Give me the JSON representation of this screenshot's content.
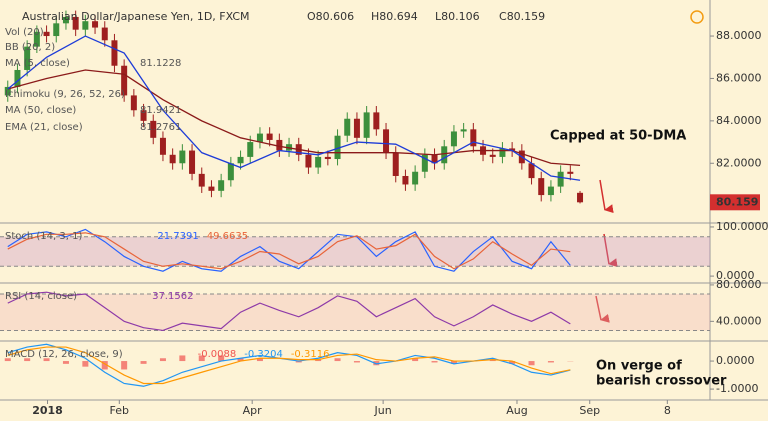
{
  "chart_data": [
    {
      "type": "candlestick",
      "title": "Australian Dollar/Japanese Yen, 1D, FXCM",
      "ohlc_prefixes": [
        "O",
        "H",
        "L",
        "C"
      ],
      "x": [
        0,
        1,
        2,
        3,
        4,
        5,
        6,
        7,
        8,
        9,
        10,
        11,
        12,
        13,
        14,
        15,
        16,
        17,
        18,
        19,
        20,
        21,
        22,
        23,
        24,
        25,
        26,
        27,
        28,
        29,
        30,
        31,
        32,
        33,
        34,
        35,
        36,
        37,
        38,
        39,
        40,
        41,
        42,
        43,
        44,
        45,
        46,
        47,
        48,
        49,
        50,
        51,
        52,
        53,
        54,
        55,
        56,
        57,
        58,
        59
      ],
      "open": [
        85.2,
        85.6,
        86.4,
        87.5,
        88.2,
        88.0,
        88.6,
        88.9,
        88.3,
        88.7,
        88.4,
        87.8,
        86.6,
        85.2,
        84.5,
        84.0,
        83.2,
        82.4,
        82.0,
        82.6,
        81.5,
        80.9,
        80.7,
        81.2,
        82.0,
        82.3,
        83.0,
        83.4,
        83.1,
        82.6,
        82.9,
        82.4,
        81.8,
        82.3,
        82.2,
        83.3,
        84.1,
        83.2,
        84.4,
        83.6,
        82.5,
        81.4,
        81.0,
        81.6,
        82.4,
        82.0,
        82.8,
        83.5,
        83.6,
        82.8,
        82.4,
        82.3,
        82.7,
        82.6,
        82.0,
        81.3,
        80.5,
        80.9,
        81.6,
        80.606
      ],
      "high": [
        85.9,
        86.7,
        87.8,
        88.5,
        88.5,
        88.9,
        89.2,
        89.2,
        89.0,
        89.0,
        88.7,
        88.1,
        86.9,
        85.5,
        84.8,
        84.3,
        83.5,
        82.7,
        82.9,
        82.9,
        81.8,
        81.2,
        81.5,
        82.3,
        82.6,
        83.3,
        83.7,
        83.7,
        83.4,
        83.2,
        83.2,
        82.7,
        82.6,
        82.6,
        83.6,
        84.4,
        84.4,
        84.7,
        84.7,
        83.9,
        82.8,
        81.7,
        81.9,
        82.7,
        82.7,
        83.1,
        83.8,
        83.9,
        83.9,
        83.1,
        82.7,
        83.0,
        83.0,
        82.9,
        82.3,
        81.6,
        81.2,
        81.9,
        81.9,
        80.694
      ],
      "low": [
        84.9,
        85.3,
        86.1,
        87.2,
        87.7,
        87.7,
        88.3,
        88.0,
        88.0,
        88.1,
        87.5,
        86.3,
        84.9,
        84.2,
        83.7,
        82.9,
        82.1,
        81.7,
        81.7,
        81.2,
        80.6,
        80.4,
        80.4,
        80.9,
        81.7,
        82.0,
        82.7,
        82.8,
        82.3,
        82.3,
        82.1,
        81.5,
        81.5,
        81.9,
        81.9,
        83.0,
        82.9,
        82.9,
        83.3,
        82.2,
        81.1,
        80.7,
        80.7,
        81.3,
        81.7,
        81.7,
        82.5,
        83.2,
        82.5,
        82.1,
        82.0,
        82.0,
        82.3,
        81.7,
        81.0,
        80.2,
        80.2,
        80.6,
        81.2,
        80.106
      ],
      "close": [
        85.6,
        86.4,
        87.5,
        88.2,
        88.0,
        88.6,
        88.9,
        88.3,
        88.7,
        88.4,
        87.8,
        86.6,
        85.2,
        84.5,
        84.0,
        83.2,
        82.4,
        82.0,
        82.6,
        81.5,
        80.9,
        80.7,
        81.2,
        82.0,
        82.3,
        83.0,
        83.4,
        83.1,
        82.6,
        82.9,
        82.4,
        81.8,
        82.3,
        82.2,
        83.3,
        84.1,
        83.2,
        84.4,
        83.6,
        82.5,
        81.4,
        81.0,
        81.6,
        82.4,
        82.0,
        82.8,
        83.5,
        83.6,
        82.8,
        82.4,
        82.3,
        82.7,
        82.6,
        82.0,
        81.3,
        80.5,
        80.9,
        81.6,
        81.5,
        80.159
      ],
      "up_color": "#3c8f3c",
      "down_color": "#9e1f1f",
      "price_label_color": "#d32f2f",
      "overlays": [
        {
          "color": "#8b1a1a",
          "x": [
            0,
            4,
            8,
            12,
            16,
            20,
            24,
            28,
            32,
            36,
            40,
            44,
            48,
            52,
            56,
            59
          ],
          "values": [
            85.5,
            86.0,
            86.4,
            86.2,
            85.0,
            84.0,
            83.2,
            82.8,
            82.5,
            82.5,
            82.5,
            82.4,
            82.6,
            82.6,
            82.0,
            81.9
          ]
        },
        {
          "color": "#1e3cd8",
          "x": [
            0,
            4,
            8,
            12,
            16,
            20,
            24,
            28,
            32,
            36,
            40,
            44,
            48,
            52,
            56,
            59
          ],
          "values": [
            85.5,
            87.0,
            88.0,
            87.2,
            84.5,
            82.5,
            81.8,
            82.6,
            82.4,
            83.0,
            82.9,
            82.0,
            83.0,
            82.6,
            81.4,
            81.2
          ]
        }
      ],
      "indicators": [
        {
          "name": "Vol (20)"
        },
        {
          "name": "BB (20, 2)"
        },
        {
          "name": "MA (5, close)",
          "value_text": "81.1228"
        },
        {
          "name": "Ichimoku (9, 26, 52, 26)"
        },
        {
          "name": "MA (50, close)",
          "value_text": "81.9421"
        },
        {
          "name": "EMA (21, close)",
          "value_text": "81.2761"
        }
      ],
      "annotation": "Capped at 50-DMA",
      "xlim": [
        -0.8,
        72.4
      ],
      "xticks": [
        {
          "value": 4.1,
          "label": "2018"
        },
        {
          "value": 11.5,
          "label": "Feb"
        },
        {
          "value": 25.2,
          "label": "Apr"
        },
        {
          "value": 38.7,
          "label": "Jun"
        },
        {
          "value": 52.5,
          "label": "Aug"
        },
        {
          "value": 60,
          "label": "Sep"
        },
        {
          "value": 68,
          "label": "8"
        }
      ],
      "ylim": [
        79.23,
        89.7
      ],
      "yticks": [
        {
          "value": 88,
          "label": "88.0000"
        },
        {
          "value": 86,
          "label": "86.0000"
        },
        {
          "value": 84,
          "label": "84.0000"
        },
        {
          "value": 82,
          "label": "82.0000"
        }
      ]
    },
    {
      "type": "line",
      "legend": "Stoch (14, 3, 1)",
      "x": [
        0,
        2,
        4,
        6,
        8,
        10,
        12,
        14,
        16,
        18,
        20,
        22,
        24,
        26,
        28,
        30,
        32,
        34,
        36,
        38,
        40,
        42,
        44,
        46,
        48,
        50,
        52,
        54,
        56,
        58
      ],
      "series": [
        {
          "color": "#2962ff",
          "values": [
            60,
            85,
            90,
            80,
            95,
            70,
            40,
            20,
            10,
            30,
            15,
            10,
            40,
            60,
            30,
            15,
            50,
            85,
            80,
            40,
            70,
            90,
            20,
            10,
            50,
            80,
            30,
            15,
            70,
            21.7391
          ]
        },
        {
          "color": "#e8643a",
          "values": [
            55,
            75,
            85,
            85,
            88,
            80,
            55,
            30,
            20,
            25,
            20,
            15,
            30,
            50,
            45,
            25,
            40,
            70,
            82,
            55,
            62,
            85,
            40,
            15,
            35,
            70,
            45,
            22,
            55,
            49.6635
          ]
        }
      ],
      "band": [
        20,
        80
      ],
      "band_color": "#c993c9",
      "xlim": [
        -0.8,
        72.4
      ],
      "ylim": [
        -12,
        106
      ],
      "yticks": [
        {
          "value": 100,
          "label": "100.0000"
        },
        {
          "value": 0,
          "label": "0.0000"
        }
      ]
    },
    {
      "type": "line",
      "legend": "RSI (14, close)",
      "x": [
        0,
        2,
        4,
        6,
        8,
        10,
        12,
        14,
        16,
        18,
        20,
        22,
        24,
        26,
        28,
        30,
        32,
        34,
        36,
        38,
        40,
        42,
        44,
        46,
        48,
        50,
        52,
        54,
        56,
        58
      ],
      "series": [
        {
          "color": "#8e3aa8",
          "values": [
            60,
            70,
            72,
            68,
            70,
            55,
            40,
            33,
            30,
            38,
            35,
            32,
            50,
            60,
            52,
            45,
            55,
            68,
            62,
            45,
            55,
            65,
            45,
            35,
            45,
            58,
            48,
            40,
            50,
            37.1562
          ]
        }
      ],
      "band": [
        30,
        70
      ],
      "band_color": "#f2b8b8",
      "xlim": [
        -0.8,
        72.4
      ],
      "ylim": [
        19.5,
        81
      ],
      "yticks": [
        {
          "value": 80,
          "label": "80.0000"
        },
        {
          "value": 40,
          "label": "40.0000"
        }
      ]
    },
    {
      "type": "macd",
      "legend": "MACD (12, 26, close, 9)",
      "x": [
        0,
        2,
        4,
        6,
        8,
        10,
        12,
        14,
        16,
        18,
        20,
        22,
        24,
        26,
        28,
        30,
        32,
        34,
        36,
        38,
        40,
        42,
        44,
        46,
        48,
        50,
        52,
        54,
        56,
        58
      ],
      "series": [
        {
          "color": "#ef5350",
          "values": [
            0.1,
            0.1,
            0.1,
            -0.1,
            -0.2,
            -0.3,
            -0.3,
            -0.1,
            0.1,
            0.2,
            0.2,
            0.2,
            0.1,
            0.1,
            0,
            -0.05,
            0.05,
            0.1,
            -0.05,
            -0.15,
            0,
            0.1,
            -0.05,
            -0.1,
            0,
            0.05,
            -0.1,
            -0.15,
            -0.05,
            -0.0088
          ]
        },
        {
          "color": "#2196f3",
          "values": [
            0.3,
            0.5,
            0.6,
            0.4,
            0.1,
            -0.4,
            -0.8,
            -0.9,
            -0.7,
            -0.4,
            -0.2,
            0,
            0.1,
            0.2,
            0.1,
            0,
            0.1,
            0.3,
            0.2,
            -0.1,
            0,
            0.2,
            0.1,
            -0.1,
            0,
            0.1,
            -0.1,
            -0.4,
            -0.5,
            -0.3204
          ]
        },
        {
          "color": "#ff9800",
          "values": [
            0.2,
            0.4,
            0.5,
            0.5,
            0.3,
            -0.1,
            -0.5,
            -0.8,
            -0.8,
            -0.6,
            -0.4,
            -0.2,
            0,
            0.1,
            0.1,
            0.05,
            0.05,
            0.2,
            0.25,
            0.05,
            0,
            0.1,
            0.15,
            0,
            0,
            0.05,
            0,
            -0.25,
            -0.45,
            -0.3116
          ]
        }
      ],
      "annotation": [
        "On verge of",
        "bearish crossover"
      ],
      "xlim": [
        -0.8,
        72.4
      ],
      "ylim": [
        -1.39,
        0.68
      ],
      "yticks": [
        {
          "value": 0,
          "label": "0.0000"
        },
        {
          "value": -1,
          "label": "-1.0000"
        }
      ]
    }
  ]
}
